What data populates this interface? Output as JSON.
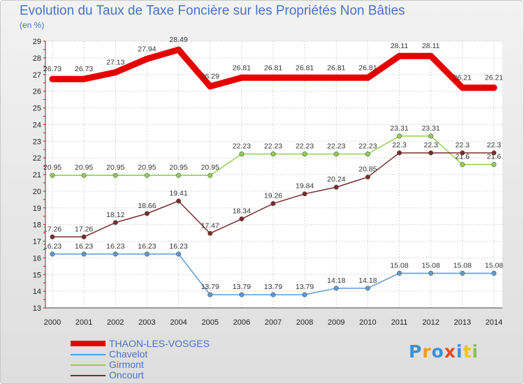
{
  "title": "Evolution du Taux de Taxe Foncière sur les Propriétés Non Bâties",
  "unit_label": "(en %)",
  "logo": {
    "text": "Proxiti",
    "letters": [
      "P",
      "r",
      "o",
      "x",
      "i",
      "t",
      "i"
    ],
    "colors": [
      "#3d8fd6",
      "#f39c12",
      "#3d8fd6",
      "#e64a19",
      "#3d8fd6",
      "#f1c40f",
      "#8bc34a"
    ]
  },
  "chart_data": {
    "type": "line",
    "title": "Evolution du Taux de Taxe Foncière sur les Propriétés Non Bâties",
    "ylabel": "(en %)",
    "xlabel": "",
    "x": [
      2000,
      2001,
      2002,
      2003,
      2004,
      2005,
      2006,
      2007,
      2008,
      2009,
      2010,
      2011,
      2012,
      2013,
      2014
    ],
    "ylim": [
      13,
      29
    ],
    "yticks": [
      13,
      14,
      15,
      16,
      17,
      18,
      19,
      20,
      21,
      22,
      23,
      24,
      25,
      26,
      27,
      28,
      29
    ],
    "grid": true,
    "legend_position": "bottom-left",
    "series": [
      {
        "name": "THAON-LES-VOSGES",
        "color": "#e60000",
        "values": [
          26.73,
          26.73,
          27.13,
          27.94,
          28.49,
          26.29,
          26.81,
          26.81,
          26.81,
          26.81,
          26.81,
          28.11,
          28.11,
          26.21,
          26.21
        ],
        "labels": [
          "26.73",
          "26.73",
          "27.13",
          "27.94",
          "28.49",
          "26.29",
          "26.81",
          "26.81",
          "26.81",
          "26.81",
          "26.81",
          "28.11",
          "28.11",
          "26.21",
          "26.21"
        ]
      },
      {
        "name": "Chavelot",
        "color": "#5b9bd5",
        "values": [
          16.23,
          16.23,
          16.23,
          16.23,
          16.23,
          13.79,
          13.79,
          13.79,
          13.79,
          14.18,
          14.18,
          15.08,
          15.08,
          15.08,
          15.08
        ],
        "labels": [
          "16.23",
          "16.23",
          "16.23",
          "16.23",
          "16.23",
          "13.79",
          "13.79",
          "13.79",
          "13.79",
          "14.18",
          "14.18",
          "15.08",
          "15.08",
          "15.08",
          "15.08"
        ]
      },
      {
        "name": "Girmont",
        "color": "#8fd14f",
        "values": [
          20.95,
          20.95,
          20.95,
          20.95,
          20.95,
          20.95,
          22.23,
          22.23,
          22.23,
          22.23,
          22.23,
          23.31,
          23.31,
          21.6,
          21.6
        ],
        "labels": [
          "20.95",
          "20.95",
          "20.95",
          "20.95",
          "20.95",
          "20.95",
          "22.23",
          "22.23",
          "22.23",
          "22.23",
          "22.23",
          "23.31",
          "23.31",
          "21.6",
          "21.6"
        ]
      },
      {
        "name": "Oncourt",
        "color": "#7b2a2a",
        "values": [
          17.26,
          17.26,
          18.12,
          18.66,
          19.41,
          17.47,
          18.34,
          19.26,
          19.84,
          20.24,
          20.85,
          22.3,
          22.3,
          22.3,
          22.3
        ],
        "labels": [
          "17.26",
          "17.26",
          "18.12",
          "18.66",
          "19.41",
          "17.47",
          "18.34",
          "19.26",
          "19.84",
          "20.24",
          "20.85",
          "22.3",
          "22.3",
          "22.3",
          "22.3"
        ]
      }
    ]
  }
}
